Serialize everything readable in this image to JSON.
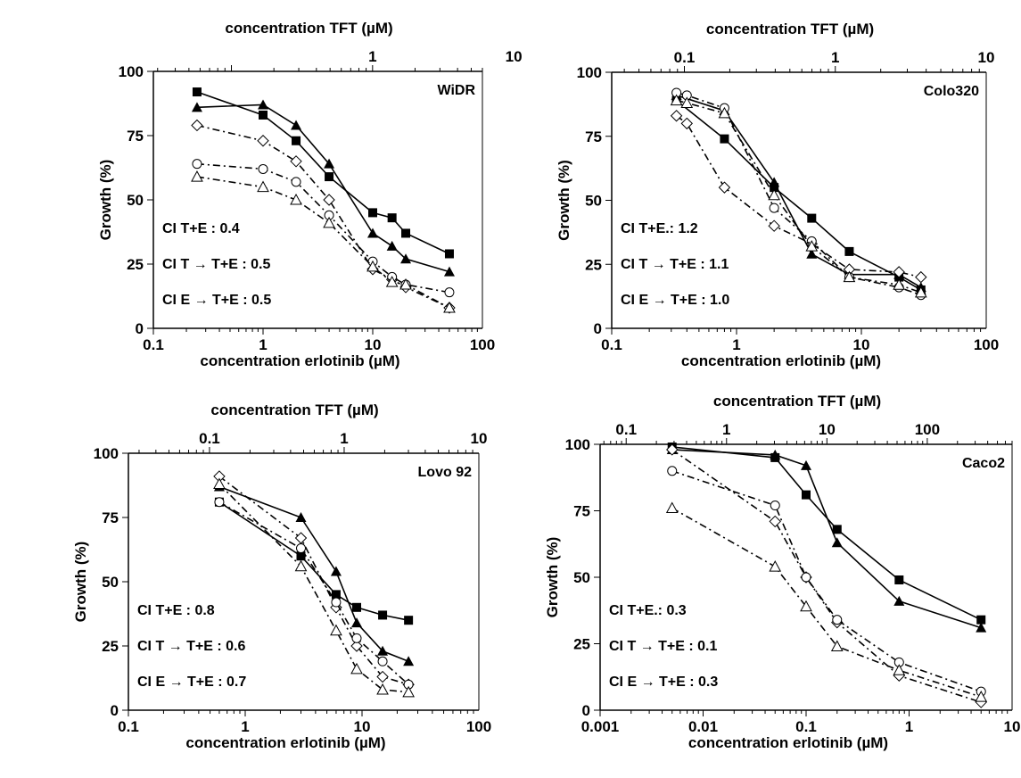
{
  "chart_data": [
    {
      "type": "line",
      "title": "WiDR",
      "xlabel": "concentration erlotinib (µM)",
      "ylabel": "Growth (%)",
      "x2label": "concentration TFT (µM)",
      "xscale": "log",
      "xlim": [
        0.1,
        100
      ],
      "ylim": [
        0,
        100
      ],
      "x_ticks": [
        "0.1",
        "1",
        "10",
        "100"
      ],
      "y_ticks": [
        "0",
        "25",
        "50",
        "75",
        "100"
      ],
      "x2scale": "log",
      "x2lim": [
        0.028,
        6
      ],
      "x2_ticks": [
        "1",
        "10"
      ],
      "annotations": [
        "CI T+E : 0.4",
        "CI T → T+E : 0.5",
        "CI E → T+E : 0.5"
      ],
      "series": [
        {
          "marker": "square-filled",
          "line": "solid",
          "x": [
            0.25,
            1,
            2,
            4,
            10,
            15,
            20,
            50
          ],
          "y": [
            92,
            83,
            73,
            59,
            45,
            43,
            37,
            29
          ]
        },
        {
          "marker": "triangle-filled",
          "line": "solid",
          "x": [
            0.25,
            1,
            2,
            4,
            10,
            15,
            20,
            50
          ],
          "y": [
            86,
            87,
            79,
            64,
            37,
            32,
            27,
            22
          ]
        },
        {
          "marker": "diamond-open",
          "line": "dash-dot",
          "x": [
            0.25,
            1,
            2,
            4,
            10,
            15,
            20,
            50
          ],
          "y": [
            79,
            73,
            65,
            50,
            23,
            19,
            16,
            8
          ]
        },
        {
          "marker": "circle-open",
          "line": "dash-dot",
          "x": [
            0.25,
            1,
            2,
            4,
            10,
            15,
            20,
            50
          ],
          "y": [
            64,
            62,
            57,
            44,
            26,
            20,
            17,
            14
          ]
        },
        {
          "marker": "triangle-open",
          "line": "dash-dot",
          "x": [
            0.25,
            1,
            2,
            4,
            10,
            15,
            20,
            50
          ],
          "y": [
            59,
            55,
            50,
            41,
            24,
            18,
            17,
            8
          ]
        }
      ]
    },
    {
      "type": "line",
      "title": "Colo320",
      "xlabel": "concentration erlotinib (µM)",
      "ylabel": "Growth (%)",
      "x2label": "concentration TFT (µM)",
      "xscale": "log",
      "xlim": [
        0.1,
        100
      ],
      "ylim": [
        0,
        100
      ],
      "x_ticks": [
        "0.1",
        "1",
        "10",
        "100"
      ],
      "y_ticks": [
        "0",
        "25",
        "50",
        "75",
        "100"
      ],
      "x2scale": "log",
      "x2lim": [
        0.033,
        10
      ],
      "x2_ticks": [
        "0.1",
        "1",
        "10"
      ],
      "annotations": [
        "CI T+E.: 1.2",
        "CI T → T+E : 1.1",
        "CI E → T+E : 1.0"
      ],
      "series": [
        {
          "marker": "square-filled",
          "line": "solid",
          "x": [
            0.33,
            0.8,
            2,
            4,
            8,
            20,
            30
          ],
          "y": [
            89,
            74,
            55,
            43,
            30,
            20,
            15
          ]
        },
        {
          "marker": "triangle-filled",
          "line": "solid",
          "x": [
            0.33,
            0.8,
            2,
            4,
            8,
            20,
            30
          ],
          "y": [
            91,
            85,
            57,
            29,
            21,
            21,
            16
          ]
        },
        {
          "marker": "diamond-open",
          "line": "dash-dot",
          "x": [
            0.33,
            0.4,
            0.8,
            2,
            4,
            8,
            20,
            30
          ],
          "y": [
            83,
            80,
            55,
            40,
            33,
            23,
            22,
            20
          ]
        },
        {
          "marker": "circle-open",
          "line": "dash-dot",
          "x": [
            0.33,
            0.4,
            0.8,
            2,
            4,
            8,
            20,
            30
          ],
          "y": [
            92,
            91,
            86,
            47,
            34,
            20,
            16,
            13
          ]
        },
        {
          "marker": "triangle-open",
          "line": "dash-dot",
          "x": [
            0.33,
            0.4,
            0.8,
            2,
            4,
            8,
            20,
            30
          ],
          "y": [
            89,
            88,
            84,
            52,
            32,
            20,
            17,
            14
          ]
        }
      ]
    },
    {
      "type": "line",
      "title": "Lovo 92",
      "xlabel": "concentration erlotinib (µM)",
      "ylabel": "Growth (%)",
      "x2label": "concentration TFT (µM)",
      "xscale": "log",
      "xlim": [
        0.1,
        100
      ],
      "ylim": [
        0,
        100
      ],
      "x_ticks": [
        "0.1",
        "1",
        "10",
        "100"
      ],
      "y_ticks": [
        "0",
        "25",
        "50",
        "75",
        "100"
      ],
      "x2scale": "log",
      "x2lim": [
        0.025,
        10
      ],
      "x2_ticks": [
        "0.1",
        "1",
        "10"
      ],
      "annotations": [
        "CI T+E : 0.8",
        "CI T → T+E : 0.6",
        "CI E → T+E : 0.7"
      ],
      "series": [
        {
          "marker": "square-filled",
          "line": "solid",
          "x": [
            0.6,
            3,
            6,
            9,
            15,
            25
          ],
          "y": [
            81,
            60,
            45,
            40,
            37,
            35
          ]
        },
        {
          "marker": "triangle-filled",
          "line": "solid",
          "x": [
            0.6,
            3,
            6,
            9,
            15,
            25
          ],
          "y": [
            87,
            75,
            54,
            34,
            23,
            19
          ]
        },
        {
          "marker": "diamond-open",
          "line": "dash-dot",
          "x": [
            0.6,
            3,
            6,
            9,
            15,
            25
          ],
          "y": [
            91,
            67,
            40,
            25,
            13,
            10
          ]
        },
        {
          "marker": "circle-open",
          "line": "dash-dot",
          "x": [
            0.6,
            3,
            6,
            9,
            15,
            25
          ],
          "y": [
            81,
            63,
            42,
            28,
            19,
            10
          ]
        },
        {
          "marker": "triangle-open",
          "line": "dash-dot",
          "x": [
            0.6,
            3,
            6,
            9,
            15,
            25
          ],
          "y": [
            88,
            56,
            31,
            16,
            8,
            7
          ]
        }
      ]
    },
    {
      "type": "line",
      "title": "Caco2",
      "xlabel": "concentration erlotinib (µM)",
      "ylabel": "Growth (%)",
      "x2label": "concentration TFT (µM)",
      "xscale": "log",
      "xlim": [
        0.001,
        10
      ],
      "ylim": [
        0,
        100
      ],
      "x_ticks": [
        "0.001",
        "0.01",
        "0.1",
        "1",
        "10"
      ],
      "y_ticks": [
        "0",
        "25",
        "50",
        "75",
        "100"
      ],
      "x2scale": "log",
      "x2lim": [
        0.055,
        700
      ],
      "x2_ticks": [
        "0.1",
        "1",
        "10",
        "100"
      ],
      "annotations": [
        "CI T+E.: 0.3",
        "CI T → T+E : 0.1",
        "CI E → T+E : 0.3"
      ],
      "series": [
        {
          "marker": "square-filled",
          "line": "solid",
          "x": [
            0.005,
            0.05,
            0.1,
            0.2,
            0.8,
            5
          ],
          "y": [
            99,
            95,
            81,
            68,
            49,
            34
          ]
        },
        {
          "marker": "triangle-filled",
          "line": "solid",
          "x": [
            0.005,
            0.05,
            0.1,
            0.2,
            0.8,
            5
          ],
          "y": [
            98,
            96,
            92,
            63,
            41,
            31
          ]
        },
        {
          "marker": "diamond-open",
          "line": "dash-dot",
          "x": [
            0.005,
            0.05,
            0.1,
            0.2,
            0.8,
            5
          ],
          "y": [
            98,
            71,
            50,
            33,
            13,
            3
          ]
        },
        {
          "marker": "circle-open",
          "line": "dash-dot",
          "x": [
            0.005,
            0.05,
            0.1,
            0.2,
            0.8,
            5
          ],
          "y": [
            90,
            77,
            50,
            34,
            18,
            7
          ]
        },
        {
          "marker": "triangle-open",
          "line": "dash-dot",
          "x": [
            0.005,
            0.05,
            0.1,
            0.2,
            0.8,
            5
          ],
          "y": [
            76,
            54,
            39,
            24,
            15,
            5
          ]
        }
      ]
    }
  ]
}
